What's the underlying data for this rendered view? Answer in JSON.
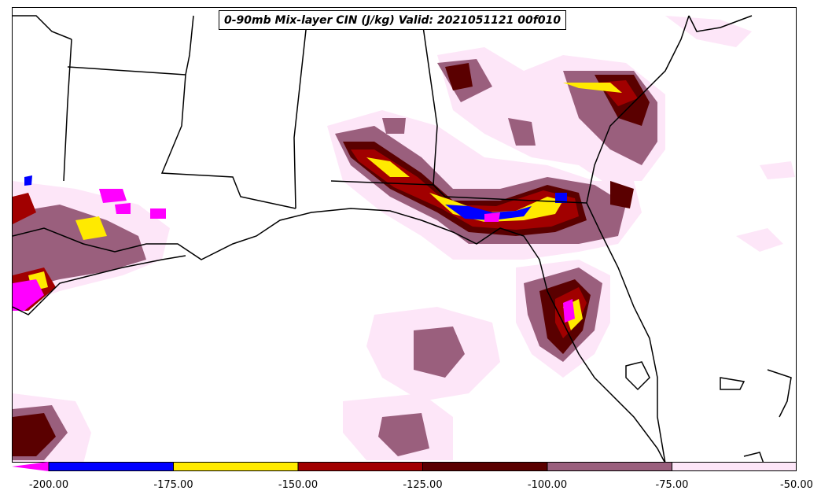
{
  "title": "0-90mb Mix-layer CIN (J/kg) Valid: 2021051121 00f010",
  "colorbar": {
    "ticks": [
      "-200.00",
      "-175.00",
      "-150.00",
      "-125.00",
      "-100.00",
      "-75.00",
      "-50.00"
    ],
    "bins": [
      {
        "from": -200,
        "to": -175,
        "color": "#0000ff"
      },
      {
        "from": -175,
        "to": -150,
        "color": "#ffea00"
      },
      {
        "from": -150,
        "to": -125,
        "color": "#a10000"
      },
      {
        "from": -125,
        "to": -100,
        "color": "#5a0000"
      },
      {
        "from": -100,
        "to": -75,
        "color": "#9a5f7d"
      },
      {
        "from": -75,
        "to": -50,
        "color": "#fde6f8"
      }
    ],
    "under_color": "#ff00ff"
  }
}
